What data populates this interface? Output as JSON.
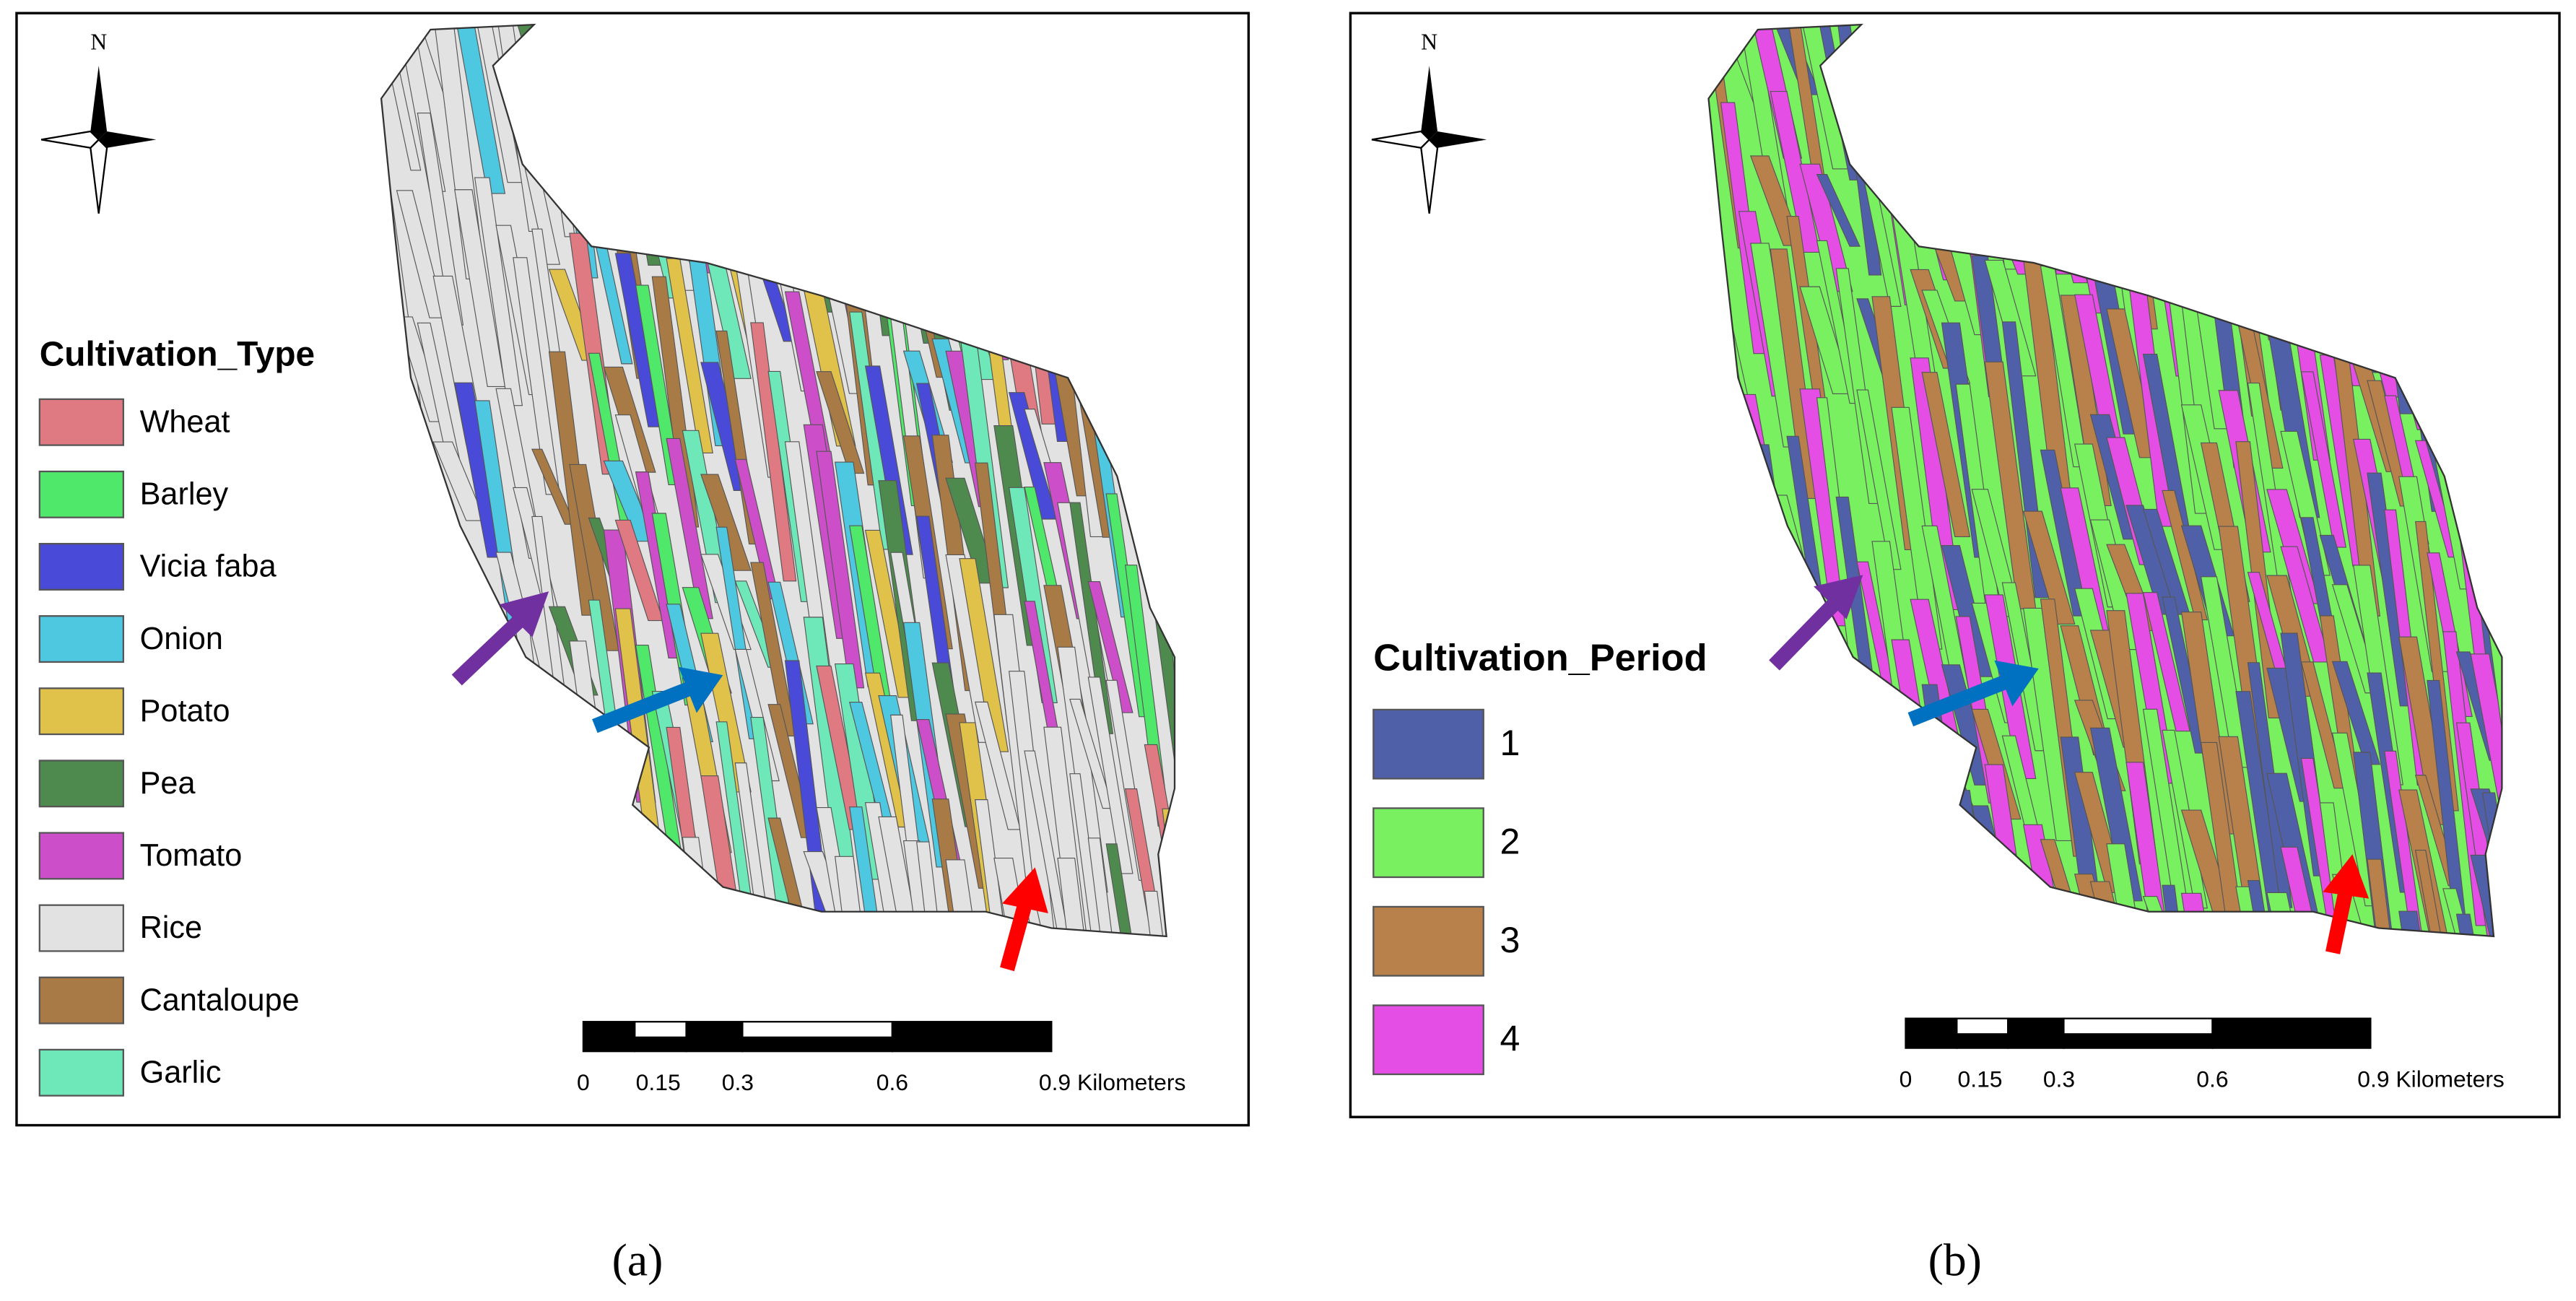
{
  "panels": [
    {
      "legend": {
        "title": "Cultivation_Type",
        "items": [
          {
            "label": "Wheat",
            "color": "#df7a82"
          },
          {
            "label": "Barley",
            "color": "#4fe86b"
          },
          {
            "label": "Vicia faba",
            "color": "#4a4ad8"
          },
          {
            "label": "Onion",
            "color": "#4ec8e0"
          },
          {
            "label": "Potato",
            "color": "#e0c24a"
          },
          {
            "label": "Pea",
            "color": "#4e8a4e"
          },
          {
            "label": "Tomato",
            "color": "#cc4ec8"
          },
          {
            "label": "Rice",
            "color": "#e2e2e2"
          },
          {
            "label": "Cantaloupe",
            "color": "#a87a45"
          },
          {
            "label": "Garlic",
            "color": "#6ee8b8"
          }
        ]
      },
      "north": "N",
      "scale_bar": [
        "0",
        "0.15",
        "0.3",
        "0.6",
        "0.9 Kilometers"
      ],
      "caption": "(a)"
    },
    {
      "legend": {
        "title": "Cultivation_Period",
        "items": [
          {
            "label": "1",
            "color": "#5060a8"
          },
          {
            "label": "2",
            "color": "#78f060"
          },
          {
            "label": "3",
            "color": "#b8804a"
          },
          {
            "label": "4",
            "color": "#e44ee4"
          }
        ]
      },
      "north": "N",
      "scale_bar": [
        "0",
        "0.15",
        "0.3",
        "0.6",
        "0.9 Kilometers"
      ],
      "caption": "(b)"
    }
  ]
}
